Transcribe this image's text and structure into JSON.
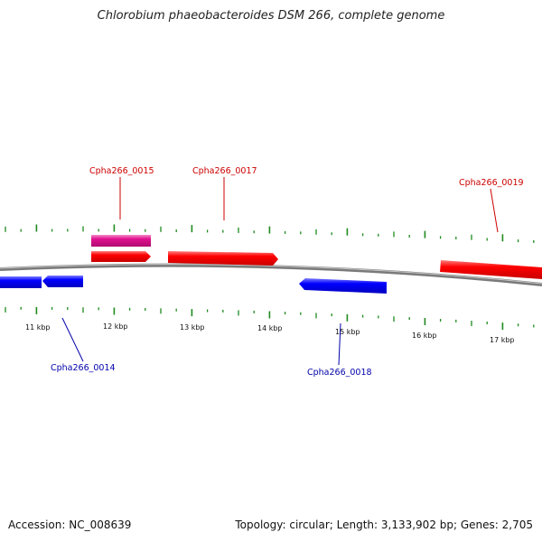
{
  "title": "Chlorobium phaeobacteroides DSM 266, complete genome",
  "footer": {
    "accession": "Accession: NC_008639",
    "summary": "Topology: circular; Length: 3,133,902 bp; Genes: 2,705"
  },
  "colors": {
    "forward_gene": "#ff0000",
    "reverse_gene": "#0000ff",
    "rna_gene": "#e0118f",
    "forward_label": "#cc0000",
    "reverse_label": "#0000aa",
    "ticks": "#1e8a1e",
    "backbone": "#7a7a7a"
  },
  "scale_labels": [
    "11 kbp",
    "12 kbp",
    "13 kbp",
    "14 kbp",
    "15 kbp",
    "16 kbp",
    "17 kbp"
  ],
  "gene_labels": [
    {
      "id": "g15",
      "text": "Cpha266_0015",
      "strand": "forward"
    },
    {
      "id": "g17",
      "text": "Cpha266_0017",
      "strand": "forward"
    },
    {
      "id": "g19",
      "text": "Cpha266_0019",
      "strand": "forward"
    },
    {
      "id": "g14",
      "text": "Cpha266_0014",
      "strand": "reverse"
    },
    {
      "id": "g18",
      "text": "Cpha266_0018",
      "strand": "reverse"
    }
  ]
}
